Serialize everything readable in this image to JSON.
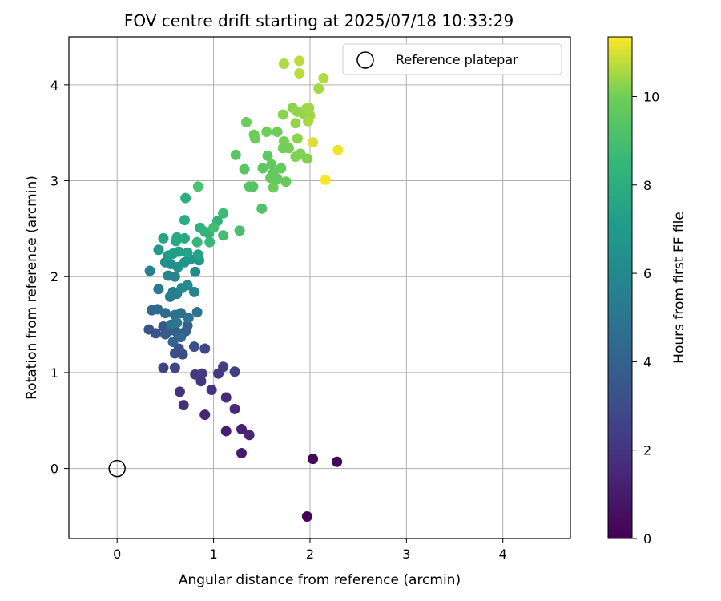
{
  "chart_data": {
    "type": "scatter",
    "title": "FOV centre drift starting at 2025/07/18 10:33:29",
    "xlabel": "Angular distance from reference (arcmin)",
    "ylabel": "Rotation from reference (arcmin)",
    "xlim": [
      -0.5,
      4.7
    ],
    "ylim": [
      -0.73,
      4.5
    ],
    "xticks": [
      "0",
      "1",
      "2",
      "3",
      "4"
    ],
    "yticks": [
      "0",
      "1",
      "2",
      "3",
      "4"
    ],
    "grid": true,
    "legend": {
      "placement": "top-right",
      "entries": [
        "Reference platepar"
      ]
    },
    "reference_point": {
      "name": "Reference platepar",
      "x": 0,
      "y": 0,
      "marker": "open-circle"
    },
    "colorbar": {
      "label": "Hours from first FF file",
      "colormap": "viridis",
      "range": [
        0,
        11.35
      ],
      "ticks": [
        "0",
        "2",
        "4",
        "6",
        "8",
        "10"
      ]
    },
    "points": [
      [
        1.97,
        -0.5,
        0.1
      ],
      [
        2.03,
        0.1,
        0.2
      ],
      [
        2.28,
        0.07,
        0.3
      ],
      [
        1.29,
        0.16,
        1.0
      ],
      [
        1.13,
        0.39,
        1.1
      ],
      [
        1.29,
        0.41,
        1.2
      ],
      [
        1.37,
        0.35,
        1.3
      ],
      [
        0.91,
        0.56,
        1.4
      ],
      [
        1.22,
        0.62,
        1.5
      ],
      [
        1.13,
        0.74,
        1.6
      ],
      [
        0.69,
        0.66,
        1.7
      ],
      [
        0.65,
        0.8,
        1.8
      ],
      [
        0.98,
        0.82,
        1.9
      ],
      [
        0.87,
        0.91,
        2.0
      ],
      [
        1.05,
        0.99,
        2.1
      ],
      [
        0.81,
        0.98,
        2.2
      ],
      [
        0.88,
        0.99,
        2.3
      ],
      [
        1.1,
        1.06,
        2.4
      ],
      [
        1.22,
        1.01,
        2.5
      ],
      [
        0.48,
        1.05,
        2.6
      ],
      [
        0.6,
        1.05,
        2.7
      ],
      [
        0.91,
        1.25,
        2.8
      ],
      [
        0.68,
        1.19,
        2.9
      ],
      [
        0.6,
        1.2,
        3.0
      ],
      [
        0.8,
        1.27,
        3.1
      ],
      [
        0.64,
        1.25,
        3.2
      ],
      [
        0.33,
        1.45,
        3.3
      ],
      [
        0.4,
        1.41,
        3.4
      ],
      [
        0.48,
        1.48,
        3.5
      ],
      [
        0.5,
        1.4,
        3.6
      ],
      [
        0.55,
        1.44,
        3.7
      ],
      [
        0.62,
        1.42,
        3.8
      ],
      [
        0.71,
        1.43,
        3.9
      ],
      [
        0.73,
        1.49,
        4.0
      ],
      [
        0.58,
        1.32,
        4.1
      ],
      [
        0.66,
        1.37,
        4.2
      ],
      [
        0.36,
        1.65,
        4.3
      ],
      [
        0.42,
        1.66,
        4.4
      ],
      [
        0.5,
        1.62,
        4.5
      ],
      [
        0.6,
        1.6,
        4.6
      ],
      [
        0.66,
        1.62,
        4.7
      ],
      [
        0.74,
        1.57,
        4.8
      ],
      [
        0.83,
        1.63,
        4.9
      ],
      [
        0.56,
        1.5,
        5.0
      ],
      [
        0.62,
        1.52,
        5.1
      ],
      [
        0.43,
        1.87,
        5.2
      ],
      [
        0.55,
        1.79,
        5.3
      ],
      [
        0.58,
        1.84,
        5.4
      ],
      [
        0.62,
        1.82,
        5.5
      ],
      [
        0.8,
        1.84,
        5.6
      ],
      [
        0.34,
        2.06,
        5.7
      ],
      [
        0.53,
        2.01,
        5.8
      ],
      [
        0.6,
        2.0,
        5.9
      ],
      [
        0.67,
        1.88,
        6.0
      ],
      [
        0.73,
        1.91,
        6.1
      ],
      [
        0.81,
        2.05,
        6.2
      ],
      [
        0.5,
        2.15,
        6.3
      ],
      [
        0.56,
        2.13,
        6.4
      ],
      [
        0.63,
        2.1,
        6.5
      ],
      [
        0.7,
        2.15,
        6.6
      ],
      [
        0.76,
        2.18,
        6.7
      ],
      [
        0.85,
        2.17,
        6.8
      ],
      [
        0.43,
        2.28,
        6.9
      ],
      [
        0.53,
        2.22,
        7.0
      ],
      [
        0.58,
        2.24,
        7.1
      ],
      [
        0.64,
        2.26,
        7.2
      ],
      [
        0.73,
        2.25,
        7.3
      ],
      [
        0.84,
        2.23,
        7.4
      ],
      [
        0.48,
        2.4,
        7.5
      ],
      [
        0.61,
        2.37,
        7.6
      ],
      [
        0.7,
        2.4,
        7.7
      ],
      [
        0.62,
        2.41,
        7.8
      ],
      [
        0.7,
        2.59,
        7.9
      ],
      [
        0.71,
        2.82,
        8.0
      ],
      [
        0.86,
        2.51,
        8.1
      ],
      [
        0.91,
        2.47,
        8.2
      ],
      [
        1.04,
        2.58,
        8.3
      ],
      [
        0.95,
        2.45,
        8.4
      ],
      [
        0.83,
        2.36,
        8.5
      ],
      [
        0.96,
        2.36,
        8.6
      ],
      [
        1.1,
        2.66,
        8.7
      ],
      [
        1.0,
        2.51,
        8.8
      ],
      [
        1.1,
        2.43,
        8.9
      ],
      [
        1.27,
        2.48,
        9.0
      ],
      [
        0.84,
        2.94,
        9.1
      ],
      [
        1.5,
        2.71,
        9.2
      ],
      [
        1.37,
        2.94,
        9.3
      ],
      [
        1.41,
        2.94,
        9.3
      ],
      [
        1.23,
        3.27,
        9.4
      ],
      [
        1.32,
        3.12,
        9.4
      ],
      [
        1.51,
        3.13,
        9.5
      ],
      [
        1.56,
        3.26,
        9.5
      ],
      [
        1.6,
        3.17,
        9.6
      ],
      [
        1.62,
        3.08,
        9.6
      ],
      [
        1.66,
        3.02,
        9.6
      ],
      [
        1.59,
        3.03,
        9.7
      ],
      [
        1.7,
        3.13,
        9.7
      ],
      [
        1.75,
        2.99,
        9.7
      ],
      [
        1.62,
        2.93,
        9.8
      ],
      [
        1.34,
        3.61,
        9.8
      ],
      [
        1.42,
        3.48,
        9.8
      ],
      [
        1.43,
        3.44,
        9.9
      ],
      [
        1.55,
        3.51,
        9.9
      ],
      [
        1.66,
        3.51,
        9.9
      ],
      [
        1.73,
        3.41,
        10.0
      ],
      [
        1.72,
        3.34,
        10.0
      ],
      [
        1.78,
        3.34,
        10.0
      ],
      [
        1.85,
        3.25,
        10.1
      ],
      [
        1.9,
        3.28,
        10.1
      ],
      [
        1.97,
        3.23,
        10.1
      ],
      [
        1.87,
        3.44,
        10.2
      ],
      [
        1.72,
        3.69,
        10.2
      ],
      [
        1.82,
        3.76,
        10.2
      ],
      [
        1.87,
        3.72,
        10.3
      ],
      [
        1.85,
        3.6,
        10.3
      ],
      [
        1.93,
        3.7,
        10.3
      ],
      [
        1.96,
        3.75,
        10.4
      ],
      [
        1.99,
        3.76,
        10.4
      ],
      [
        2.0,
        3.68,
        10.4
      ],
      [
        1.98,
        3.62,
        10.5
      ],
      [
        2.09,
        3.96,
        10.5
      ],
      [
        2.14,
        4.07,
        10.6
      ],
      [
        1.73,
        4.22,
        10.6
      ],
      [
        1.89,
        4.25,
        10.7
      ],
      [
        1.89,
        4.12,
        10.7
      ],
      [
        2.03,
        3.4,
        11.0
      ],
      [
        2.29,
        3.32,
        11.2
      ],
      [
        2.16,
        3.01,
        11.3
      ]
    ]
  }
}
